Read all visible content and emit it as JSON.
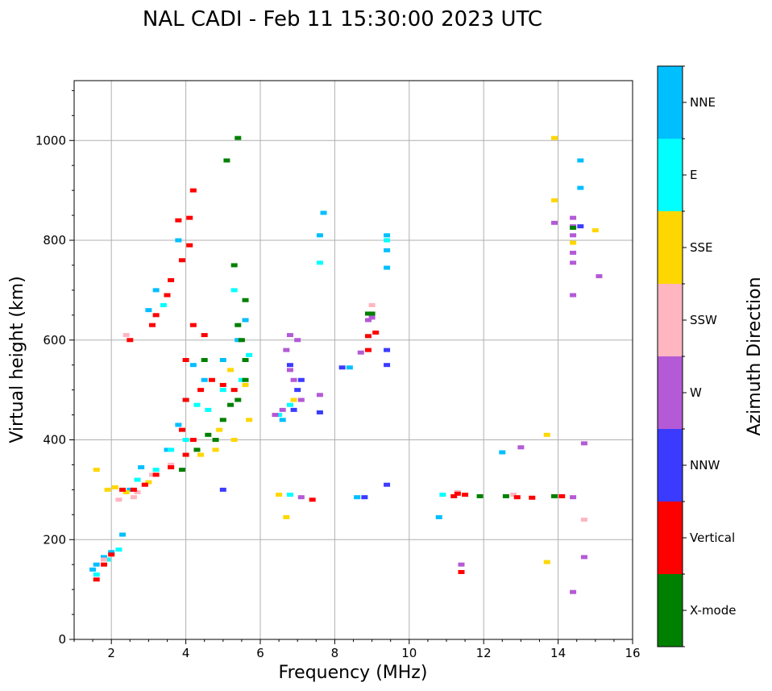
{
  "chart_data": {
    "type": "scatter",
    "title": "NAL CADI - Feb 11 15:30:00 2023 UTC",
    "xlabel": "Frequency (MHz)",
    "ylabel": "Virtual height (km)",
    "xlim": [
      1,
      16
    ],
    "ylim": [
      0,
      1120
    ],
    "xticks": [
      2,
      4,
      6,
      8,
      10,
      12,
      14,
      16
    ],
    "yticks": [
      0,
      200,
      400,
      600,
      800,
      1000
    ],
    "grid": true,
    "colorbar": {
      "title": "Azimuth Direction",
      "categories": [
        {
          "name": "X-mode",
          "color": "#008000"
        },
        {
          "name": "Vertical",
          "color": "#ff0000"
        },
        {
          "name": "NNW",
          "color": "#3b3bff"
        },
        {
          "name": "W",
          "color": "#b45ad6"
        },
        {
          "name": "SSW",
          "color": "#ffb6c1"
        },
        {
          "name": "SSE",
          "color": "#ffd700"
        },
        {
          "name": "E",
          "color": "#00ffff"
        },
        {
          "name": "NNE",
          "color": "#00bfff"
        }
      ]
    },
    "series": [
      {
        "name": "NNE",
        "points": [
          [
            1.5,
            140
          ],
          [
            1.6,
            150
          ],
          [
            1.8,
            165
          ],
          [
            2.0,
            175
          ],
          [
            2.3,
            210
          ],
          [
            2.5,
            300
          ],
          [
            2.8,
            345
          ],
          [
            3.0,
            660
          ],
          [
            3.2,
            700
          ],
          [
            3.5,
            380
          ],
          [
            3.8,
            430
          ],
          [
            4.0,
            480
          ],
          [
            4.2,
            550
          ],
          [
            4.5,
            520
          ],
          [
            5.0,
            560
          ],
          [
            5.4,
            600
          ],
          [
            5.6,
            640
          ],
          [
            6.6,
            440
          ],
          [
            7.6,
            810
          ],
          [
            7.7,
            855
          ],
          [
            8.4,
            545
          ],
          [
            8.6,
            285
          ],
          [
            9.4,
            810
          ],
          [
            9.4,
            745
          ],
          [
            9.4,
            780
          ],
          [
            10.8,
            245
          ],
          [
            12.5,
            375
          ],
          [
            14.6,
            960
          ],
          [
            14.6,
            905
          ],
          [
            3.8,
            800
          ]
        ]
      },
      {
        "name": "E",
        "points": [
          [
            1.6,
            130
          ],
          [
            1.9,
            160
          ],
          [
            2.2,
            180
          ],
          [
            2.7,
            320
          ],
          [
            3.2,
            340
          ],
          [
            3.6,
            380
          ],
          [
            4.0,
            400
          ],
          [
            4.3,
            470
          ],
          [
            4.6,
            460
          ],
          [
            5.0,
            500
          ],
          [
            5.3,
            700
          ],
          [
            5.5,
            520
          ],
          [
            5.7,
            570
          ],
          [
            6.5,
            450
          ],
          [
            6.8,
            470
          ],
          [
            6.8,
            290
          ],
          [
            7.6,
            755
          ],
          [
            9.4,
            800
          ],
          [
            10.9,
            290
          ],
          [
            3.4,
            670
          ]
        ]
      },
      {
        "name": "SSE",
        "points": [
          [
            1.6,
            340
          ],
          [
            1.9,
            300
          ],
          [
            2.1,
            305
          ],
          [
            2.4,
            295
          ],
          [
            3.0,
            315
          ],
          [
            3.6,
            345
          ],
          [
            4.4,
            370
          ],
          [
            4.8,
            380
          ],
          [
            5.3,
            400
          ],
          [
            5.7,
            440
          ],
          [
            5.6,
            510
          ],
          [
            5.2,
            540
          ],
          [
            6.5,
            290
          ],
          [
            6.7,
            245
          ],
          [
            6.9,
            480
          ],
          [
            13.7,
            410
          ],
          [
            13.7,
            155
          ],
          [
            13.9,
            1005
          ],
          [
            13.9,
            880
          ],
          [
            14.4,
            795
          ],
          [
            15.0,
            820
          ],
          [
            4.9,
            420
          ]
        ]
      },
      {
        "name": "SSW",
        "points": [
          [
            1.8,
            160
          ],
          [
            2.2,
            280
          ],
          [
            2.6,
            285
          ],
          [
            2.9,
            310
          ],
          [
            3.1,
            330
          ],
          [
            3.6,
            350
          ],
          [
            2.4,
            610
          ],
          [
            9.0,
            670
          ],
          [
            11.3,
            295
          ],
          [
            12.8,
            290
          ],
          [
            14.7,
            240
          ],
          [
            2.7,
            295
          ]
        ]
      },
      {
        "name": "W",
        "points": [
          [
            6.7,
            580
          ],
          [
            6.8,
            610
          ],
          [
            7.0,
            600
          ],
          [
            6.9,
            520
          ],
          [
            7.1,
            480
          ],
          [
            6.6,
            460
          ],
          [
            6.4,
            450
          ],
          [
            7.6,
            490
          ],
          [
            8.7,
            575
          ],
          [
            8.9,
            640
          ],
          [
            9.0,
            645
          ],
          [
            7.1,
            285
          ],
          [
            13.0,
            385
          ],
          [
            13.9,
            835
          ],
          [
            14.4,
            845
          ],
          [
            14.4,
            810
          ],
          [
            14.4,
            775
          ],
          [
            14.4,
            755
          ],
          [
            14.4,
            690
          ],
          [
            14.4,
            285
          ],
          [
            14.7,
            165
          ],
          [
            14.7,
            393
          ],
          [
            14.4,
            95
          ],
          [
            15.1,
            728
          ],
          [
            11.4,
            150
          ],
          [
            14.4,
            828
          ],
          [
            6.8,
            540
          ]
        ]
      },
      {
        "name": "NNW",
        "points": [
          [
            6.8,
            550
          ],
          [
            6.9,
            460
          ],
          [
            7.0,
            500
          ],
          [
            7.1,
            520
          ],
          [
            8.2,
            545
          ],
          [
            9.4,
            550
          ],
          [
            9.4,
            580
          ],
          [
            9.4,
            310
          ],
          [
            8.8,
            285
          ],
          [
            14.6,
            828
          ],
          [
            7.6,
            455
          ],
          [
            5.0,
            300
          ]
        ]
      },
      {
        "name": "Vertical",
        "points": [
          [
            1.6,
            120
          ],
          [
            1.8,
            150
          ],
          [
            2.0,
            170
          ],
          [
            2.3,
            300
          ],
          [
            2.6,
            300
          ],
          [
            2.9,
            310
          ],
          [
            3.2,
            330
          ],
          [
            3.6,
            345
          ],
          [
            4.0,
            370
          ],
          [
            4.2,
            400
          ],
          [
            4.0,
            480
          ],
          [
            4.0,
            560
          ],
          [
            4.2,
            900
          ],
          [
            4.1,
            845
          ],
          [
            4.1,
            790
          ],
          [
            3.9,
            760
          ],
          [
            3.8,
            840
          ],
          [
            3.5,
            690
          ],
          [
            3.6,
            720
          ],
          [
            3.2,
            650
          ],
          [
            3.1,
            630
          ],
          [
            4.2,
            630
          ],
          [
            4.5,
            610
          ],
          [
            4.4,
            500
          ],
          [
            4.7,
            520
          ],
          [
            5.0,
            510
          ],
          [
            5.3,
            500
          ],
          [
            7.4,
            280
          ],
          [
            8.9,
            608
          ],
          [
            9.1,
            615
          ],
          [
            8.9,
            580
          ],
          [
            11.2,
            287
          ],
          [
            11.3,
            292
          ],
          [
            11.5,
            290
          ],
          [
            12.9,
            285
          ],
          [
            13.3,
            284
          ],
          [
            14.1,
            287
          ],
          [
            11.4,
            135
          ],
          [
            2.5,
            600
          ],
          [
            3.9,
            420
          ]
        ]
      },
      {
        "name": "X-mode",
        "points": [
          [
            4.3,
            380
          ],
          [
            4.6,
            410
          ],
          [
            4.8,
            400
          ],
          [
            5.0,
            440
          ],
          [
            5.2,
            470
          ],
          [
            5.4,
            480
          ],
          [
            5.6,
            520
          ],
          [
            5.5,
            600
          ],
          [
            5.4,
            630
          ],
          [
            5.6,
            560
          ],
          [
            5.3,
            750
          ],
          [
            5.4,
            1005
          ],
          [
            5.1,
            960
          ],
          [
            5.6,
            680
          ],
          [
            11.9,
            287
          ],
          [
            12.6,
            287
          ],
          [
            13.9,
            287
          ],
          [
            14.4,
            825
          ],
          [
            8.9,
            653
          ],
          [
            9.0,
            653
          ],
          [
            3.9,
            340
          ],
          [
            4.5,
            560
          ]
        ]
      }
    ]
  }
}
